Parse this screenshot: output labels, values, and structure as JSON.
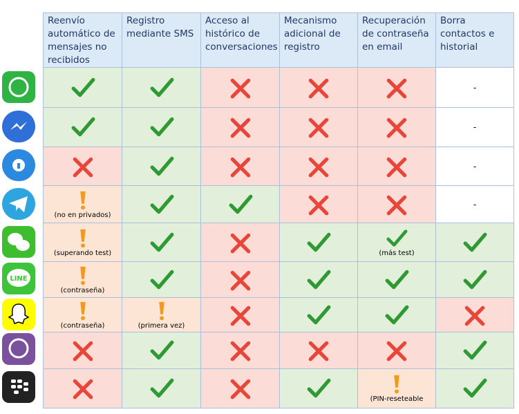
{
  "table": {
    "headers": [
      "Reenvío automático de mensajes no recibidos",
      "Registro mediante SMS",
      "Acceso al histórico de conversaciones",
      "Mecanismo adicional de registro",
      "Recuperación de contraseña en email",
      "Borra contactos e historial"
    ],
    "line_icon_text": "LINE",
    "rows": [
      [
        {
          "status": "yes"
        },
        {
          "status": "yes"
        },
        {
          "status": "no"
        },
        {
          "status": "no"
        },
        {
          "status": "no"
        },
        {
          "status": "none",
          "text": "-"
        }
      ],
      [
        {
          "status": "yes"
        },
        {
          "status": "yes"
        },
        {
          "status": "no"
        },
        {
          "status": "no"
        },
        {
          "status": "no"
        },
        {
          "status": "none",
          "text": "-"
        }
      ],
      [
        {
          "status": "no"
        },
        {
          "status": "yes"
        },
        {
          "status": "no"
        },
        {
          "status": "no"
        },
        {
          "status": "no"
        },
        {
          "status": "none",
          "text": "-"
        }
      ],
      [
        {
          "status": "warn",
          "note": "(no en privados)"
        },
        {
          "status": "yes"
        },
        {
          "status": "yes"
        },
        {
          "status": "no"
        },
        {
          "status": "no"
        },
        {
          "status": "none",
          "text": "-"
        }
      ],
      [
        {
          "status": "warn",
          "note": "(superando test)"
        },
        {
          "status": "yes"
        },
        {
          "status": "no"
        },
        {
          "status": "yes"
        },
        {
          "status": "yes",
          "note": "(más test)"
        },
        {
          "status": "yes"
        }
      ],
      [
        {
          "status": "warn",
          "note": "(contraseña)"
        },
        {
          "status": "yes"
        },
        {
          "status": "no"
        },
        {
          "status": "yes"
        },
        {
          "status": "yes"
        },
        {
          "status": "yes"
        }
      ],
      [
        {
          "status": "warn",
          "note": "(contraseña)"
        },
        {
          "status": "warn",
          "note": "(primera vez)"
        },
        {
          "status": "no"
        },
        {
          "status": "yes"
        },
        {
          "status": "yes"
        },
        {
          "status": "no"
        }
      ],
      [
        {
          "status": "no"
        },
        {
          "status": "yes"
        },
        {
          "status": "no"
        },
        {
          "status": "no"
        },
        {
          "status": "no"
        },
        {
          "status": "yes"
        }
      ],
      [
        {
          "status": "no"
        },
        {
          "status": "yes"
        },
        {
          "status": "no"
        },
        {
          "status": "yes"
        },
        {
          "status": "warn",
          "note": "(PIN-reseteable"
        },
        {
          "status": "yes"
        }
      ]
    ]
  }
}
